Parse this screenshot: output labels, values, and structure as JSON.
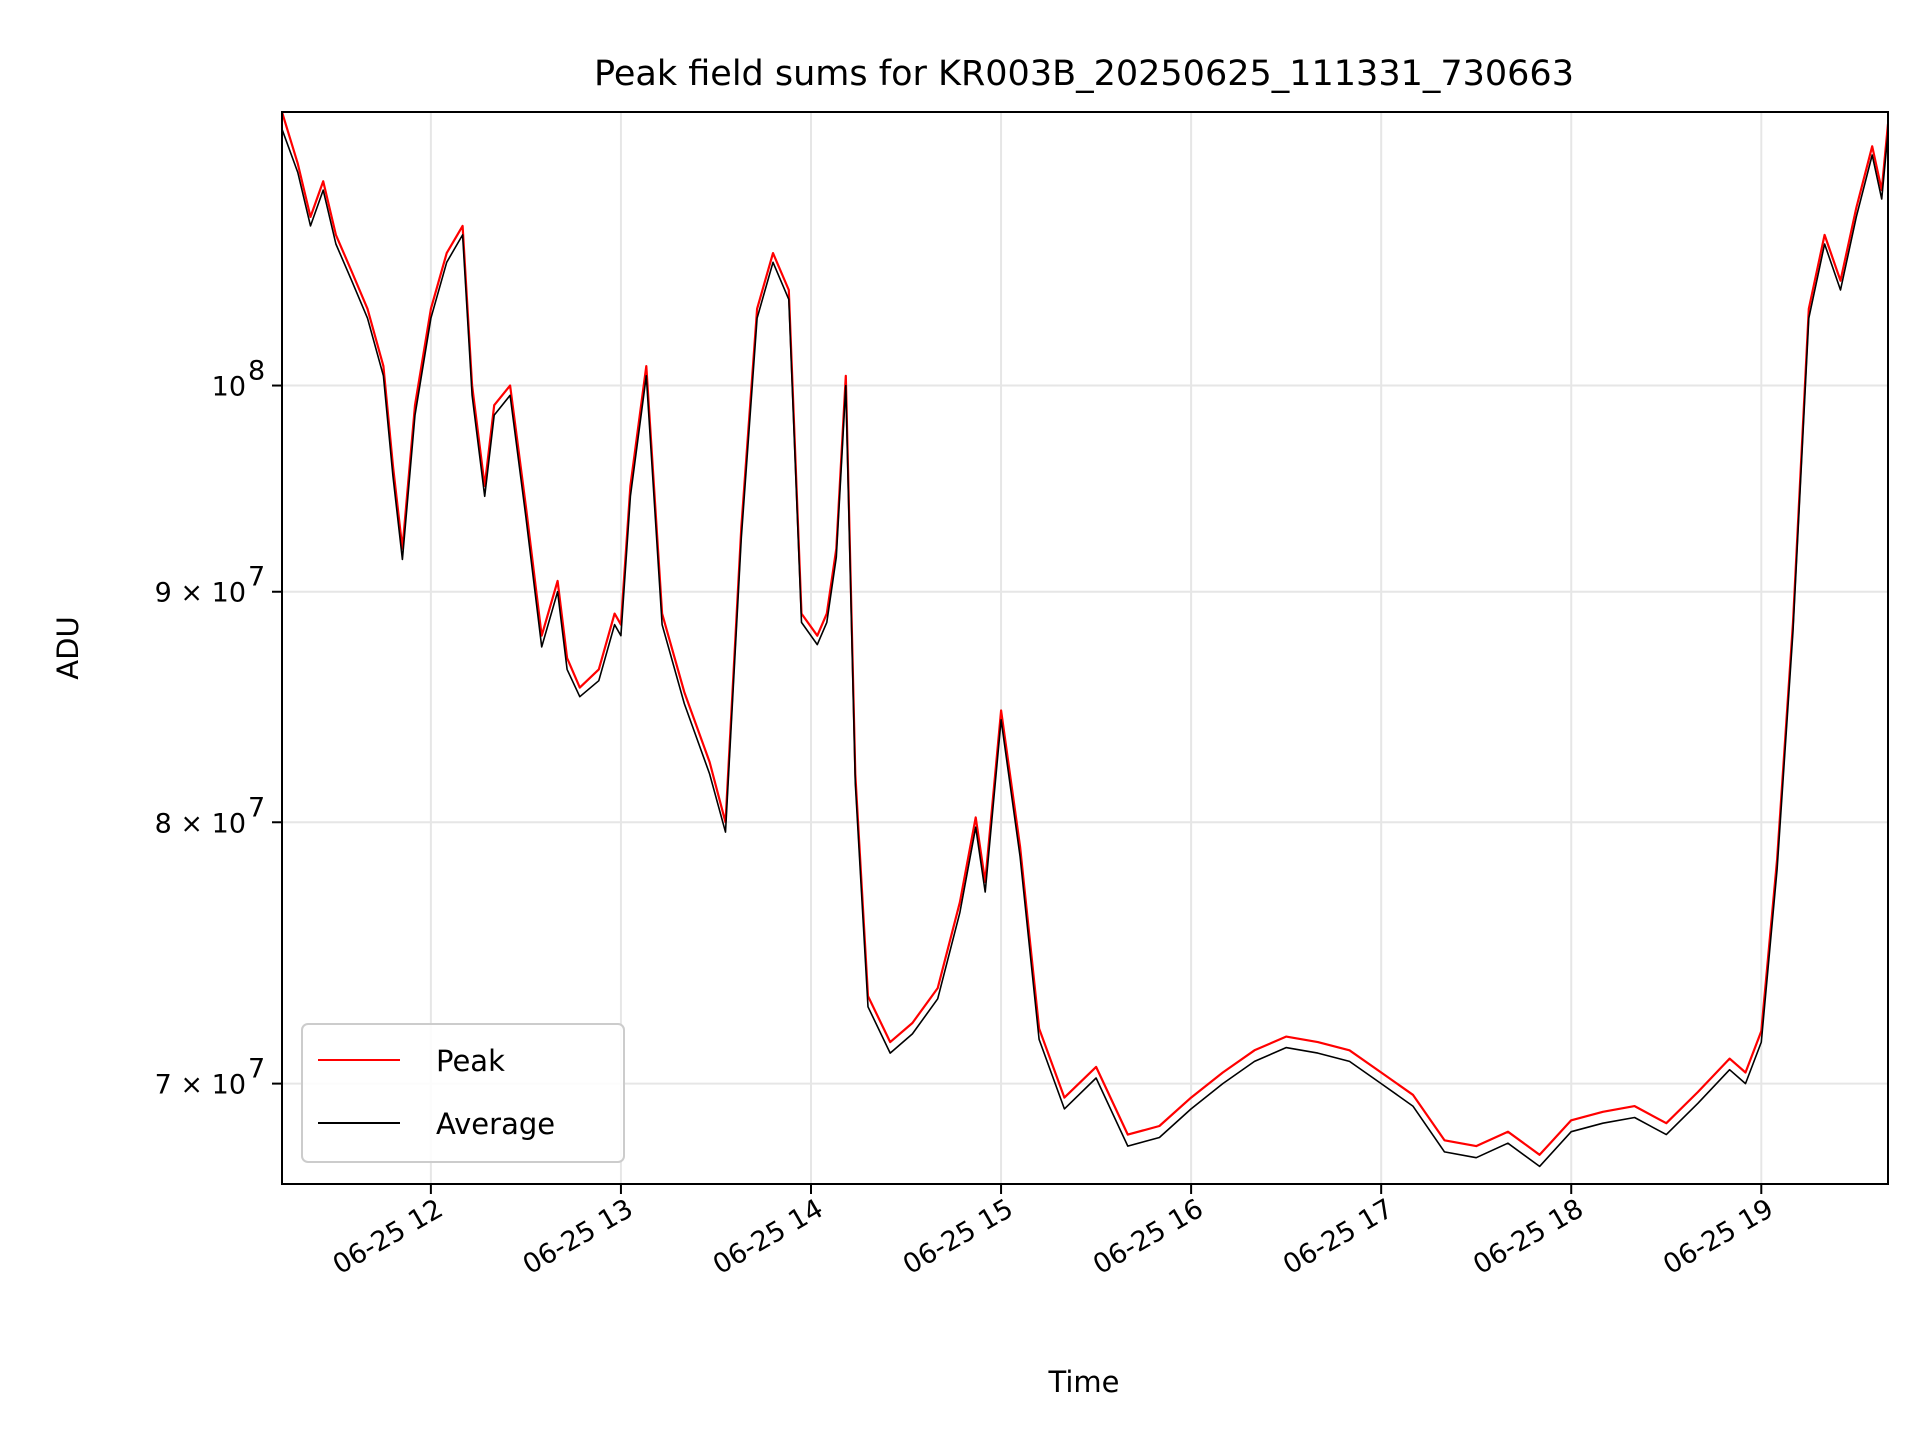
{
  "chart_data": {
    "type": "line",
    "title": "Peak field sums for KR003B_20250625_111331_730663",
    "xlabel": "Time",
    "ylabel": "ADU",
    "yscale": "log",
    "grid": true,
    "legend_position": "lower-left",
    "xlim": [
      "2025-06-25 11:13",
      "2025-06-25 19:40"
    ],
    "ylim": [
      66500000,
      115000000
    ],
    "x_ticks": [
      {
        "value": "2025-06-25 12:00",
        "label": "06-25 12"
      },
      {
        "value": "2025-06-25 13:00",
        "label": "06-25 13"
      },
      {
        "value": "2025-06-25 14:00",
        "label": "06-25 14"
      },
      {
        "value": "2025-06-25 15:00",
        "label": "06-25 15"
      },
      {
        "value": "2025-06-25 16:00",
        "label": "06-25 16"
      },
      {
        "value": "2025-06-25 17:00",
        "label": "06-25 17"
      },
      {
        "value": "2025-06-25 18:00",
        "label": "06-25 18"
      },
      {
        "value": "2025-06-25 19:00",
        "label": "06-25 19"
      }
    ],
    "y_ticks": [
      {
        "value": 70000000,
        "base": "7 × 10",
        "exp": "7"
      },
      {
        "value": 80000000,
        "base": "8 × 10",
        "exp": "7"
      },
      {
        "value": 90000000,
        "base": "9 × 10",
        "exp": "7"
      },
      {
        "value": 100000000,
        "base": "10",
        "exp": "8"
      }
    ],
    "series": [
      {
        "name": "Peak",
        "color": "#ff0000",
        "x": [
          "2025-06-25 11:13",
          "2025-06-25 11:18",
          "2025-06-25 11:22",
          "2025-06-25 11:26",
          "2025-06-25 11:30",
          "2025-06-25 11:35",
          "2025-06-25 11:40",
          "2025-06-25 11:45",
          "2025-06-25 11:48",
          "2025-06-25 11:51",
          "2025-06-25 11:55",
          "2025-06-25 12:00",
          "2025-06-25 12:05",
          "2025-06-25 12:10",
          "2025-06-25 12:13",
          "2025-06-25 12:17",
          "2025-06-25 12:20",
          "2025-06-25 12:25",
          "2025-06-25 12:30",
          "2025-06-25 12:35",
          "2025-06-25 12:40",
          "2025-06-25 12:43",
          "2025-06-25 12:47",
          "2025-06-25 12:53",
          "2025-06-25 12:58",
          "2025-06-25 13:00",
          "2025-06-25 13:03",
          "2025-06-25 13:08",
          "2025-06-25 13:13",
          "2025-06-25 13:20",
          "2025-06-25 13:28",
          "2025-06-25 13:33",
          "2025-06-25 13:38",
          "2025-06-25 13:43",
          "2025-06-25 13:48",
          "2025-06-25 13:53",
          "2025-06-25 13:57",
          "2025-06-25 14:02",
          "2025-06-25 14:05",
          "2025-06-25 14:08",
          "2025-06-25 14:11",
          "2025-06-25 14:14",
          "2025-06-25 14:18",
          "2025-06-25 14:25",
          "2025-06-25 14:32",
          "2025-06-25 14:40",
          "2025-06-25 14:47",
          "2025-06-25 14:52",
          "2025-06-25 14:55",
          "2025-06-25 15:00",
          "2025-06-25 15:06",
          "2025-06-25 15:12",
          "2025-06-25 15:20",
          "2025-06-25 15:30",
          "2025-06-25 15:40",
          "2025-06-25 15:50",
          "2025-06-25 16:00",
          "2025-06-25 16:10",
          "2025-06-25 16:20",
          "2025-06-25 16:30",
          "2025-06-25 16:40",
          "2025-06-25 16:50",
          "2025-06-25 17:00",
          "2025-06-25 17:10",
          "2025-06-25 17:20",
          "2025-06-25 17:30",
          "2025-06-25 17:40",
          "2025-06-25 17:50",
          "2025-06-25 18:00",
          "2025-06-25 18:10",
          "2025-06-25 18:20",
          "2025-06-25 18:30",
          "2025-06-25 18:40",
          "2025-06-25 18:50",
          "2025-06-25 18:55",
          "2025-06-25 19:00",
          "2025-06-25 19:05",
          "2025-06-25 19:10",
          "2025-06-25 19:15",
          "2025-06-25 19:20",
          "2025-06-25 19:25",
          "2025-06-25 19:30",
          "2025-06-25 19:35",
          "2025-06-25 19:38",
          "2025-06-25 19:40"
        ],
        "values": [
          115000000,
          112000000,
          109000000,
          111000000,
          108000000,
          106000000,
          104000000,
          101000000,
          96000000,
          92000000,
          99000000,
          104000000,
          107000000,
          108500000,
          100000000,
          95000000,
          99000000,
          100000000,
          94000000,
          88000000,
          90500000,
          87000000,
          85700000,
          86500000,
          89000000,
          88500000,
          95000000,
          101000000,
          89000000,
          85500000,
          82500000,
          80000000,
          93000000,
          104000000,
          107000000,
          105000000,
          89000000,
          88000000,
          89000000,
          92000000,
          100500000,
          82000000,
          73200000,
          71500000,
          72200000,
          73500000,
          76800000,
          80200000,
          77600000,
          84700000,
          79000000,
          72000000,
          69500000,
          70600000,
          68200000,
          68500000,
          69500000,
          70400000,
          71200000,
          71700000,
          71500000,
          71200000,
          70400000,
          69600000,
          68000000,
          67800000,
          68300000,
          67500000,
          68700000,
          69000000,
          69200000,
          68600000,
          69700000,
          70900000,
          70400000,
          71900000,
          78500000,
          88600000,
          104000000,
          108000000,
          105500000,
          109500000,
          113000000,
          110500000,
          114300000
        ]
      },
      {
        "name": "Average",
        "color": "#000000",
        "x": [
          "2025-06-25 11:13",
          "2025-06-25 11:18",
          "2025-06-25 11:22",
          "2025-06-25 11:26",
          "2025-06-25 11:30",
          "2025-06-25 11:35",
          "2025-06-25 11:40",
          "2025-06-25 11:45",
          "2025-06-25 11:48",
          "2025-06-25 11:51",
          "2025-06-25 11:55",
          "2025-06-25 12:00",
          "2025-06-25 12:05",
          "2025-06-25 12:10",
          "2025-06-25 12:13",
          "2025-06-25 12:17",
          "2025-06-25 12:20",
          "2025-06-25 12:25",
          "2025-06-25 12:30",
          "2025-06-25 12:35",
          "2025-06-25 12:40",
          "2025-06-25 12:43",
          "2025-06-25 12:47",
          "2025-06-25 12:53",
          "2025-06-25 12:58",
          "2025-06-25 13:00",
          "2025-06-25 13:03",
          "2025-06-25 13:08",
          "2025-06-25 13:13",
          "2025-06-25 13:20",
          "2025-06-25 13:28",
          "2025-06-25 13:33",
          "2025-06-25 13:38",
          "2025-06-25 13:43",
          "2025-06-25 13:48",
          "2025-06-25 13:53",
          "2025-06-25 13:57",
          "2025-06-25 14:02",
          "2025-06-25 14:05",
          "2025-06-25 14:08",
          "2025-06-25 14:11",
          "2025-06-25 14:14",
          "2025-06-25 14:18",
          "2025-06-25 14:25",
          "2025-06-25 14:32",
          "2025-06-25 14:40",
          "2025-06-25 14:47",
          "2025-06-25 14:52",
          "2025-06-25 14:55",
          "2025-06-25 15:00",
          "2025-06-25 15:06",
          "2025-06-25 15:12",
          "2025-06-25 15:20",
          "2025-06-25 15:30",
          "2025-06-25 15:40",
          "2025-06-25 15:50",
          "2025-06-25 16:00",
          "2025-06-25 16:10",
          "2025-06-25 16:20",
          "2025-06-25 16:30",
          "2025-06-25 16:40",
          "2025-06-25 16:50",
          "2025-06-25 17:00",
          "2025-06-25 17:10",
          "2025-06-25 17:20",
          "2025-06-25 17:30",
          "2025-06-25 17:40",
          "2025-06-25 17:50",
          "2025-06-25 18:00",
          "2025-06-25 18:10",
          "2025-06-25 18:20",
          "2025-06-25 18:30",
          "2025-06-25 18:40",
          "2025-06-25 18:50",
          "2025-06-25 18:55",
          "2025-06-25 19:00",
          "2025-06-25 19:05",
          "2025-06-25 19:10",
          "2025-06-25 19:15",
          "2025-06-25 19:20",
          "2025-06-25 19:25",
          "2025-06-25 19:30",
          "2025-06-25 19:35",
          "2025-06-25 19:38",
          "2025-06-25 19:40"
        ],
        "values": [
          114000000,
          111500000,
          108500000,
          110500000,
          107500000,
          105500000,
          103500000,
          100500000,
          95500000,
          91500000,
          98500000,
          103500000,
          106500000,
          108000000,
          99500000,
          94500000,
          98500000,
          99500000,
          93500000,
          87500000,
          90000000,
          86500000,
          85300000,
          86000000,
          88500000,
          88000000,
          94500000,
          100500000,
          88500000,
          85000000,
          82000000,
          79600000,
          92500000,
          103500000,
          106500000,
          104500000,
          88600000,
          87600000,
          88600000,
          91600000,
          100000000,
          81600000,
          72800000,
          71100000,
          71800000,
          73100000,
          76400000,
          79800000,
          77200000,
          84300000,
          78600000,
          71600000,
          69100000,
          70200000,
          67800000,
          68100000,
          69100000,
          70000000,
          70800000,
          71300000,
          71100000,
          70800000,
          70000000,
          69200000,
          67600000,
          67400000,
          67900000,
          67100000,
          68300000,
          68600000,
          68800000,
          68200000,
          69300000,
          70500000,
          70000000,
          71500000,
          78100000,
          88200000,
          103500000,
          107500000,
          105000000,
          109000000,
          112500000,
          110000000,
          113800000
        ]
      }
    ]
  }
}
